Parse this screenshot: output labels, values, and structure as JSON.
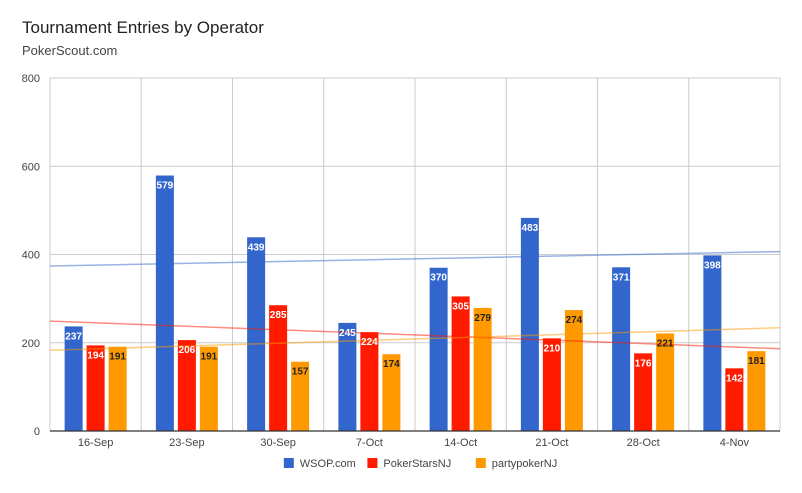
{
  "title": "Tournament Entries by Operator",
  "subtitle": "PokerScout.com",
  "chart_data": {
    "type": "bar",
    "title": "Tournament Entries by Operator",
    "subtitle": "PokerScout.com",
    "categories": [
      "16-Sep",
      "23-Sep",
      "30-Sep",
      "7-Oct",
      "14-Oct",
      "21-Oct",
      "28-Oct",
      "4-Nov"
    ],
    "series": [
      {
        "name": "WSOP.com",
        "color": "#3366cc",
        "label_color": "#ffffff",
        "values": [
          237,
          579,
          439,
          245,
          370,
          483,
          371,
          398
        ]
      },
      {
        "name": "PokerStarsNJ",
        "color": "#ff1a00",
        "label_color": "#ffffff",
        "values": [
          194,
          206,
          285,
          224,
          305,
          210,
          176,
          142
        ]
      },
      {
        "name": "partypokerNJ",
        "color": "#ff9900",
        "label_color": "#222222",
        "values": [
          191,
          191,
          157,
          174,
          279,
          274,
          221,
          181
        ]
      }
    ],
    "trendlines": true,
    "xlabel": "",
    "ylabel": "",
    "ylim": [
      0,
      800
    ],
    "yticks": [
      0,
      200,
      400,
      600,
      800
    ],
    "grid": true,
    "legend_position": "bottom"
  }
}
